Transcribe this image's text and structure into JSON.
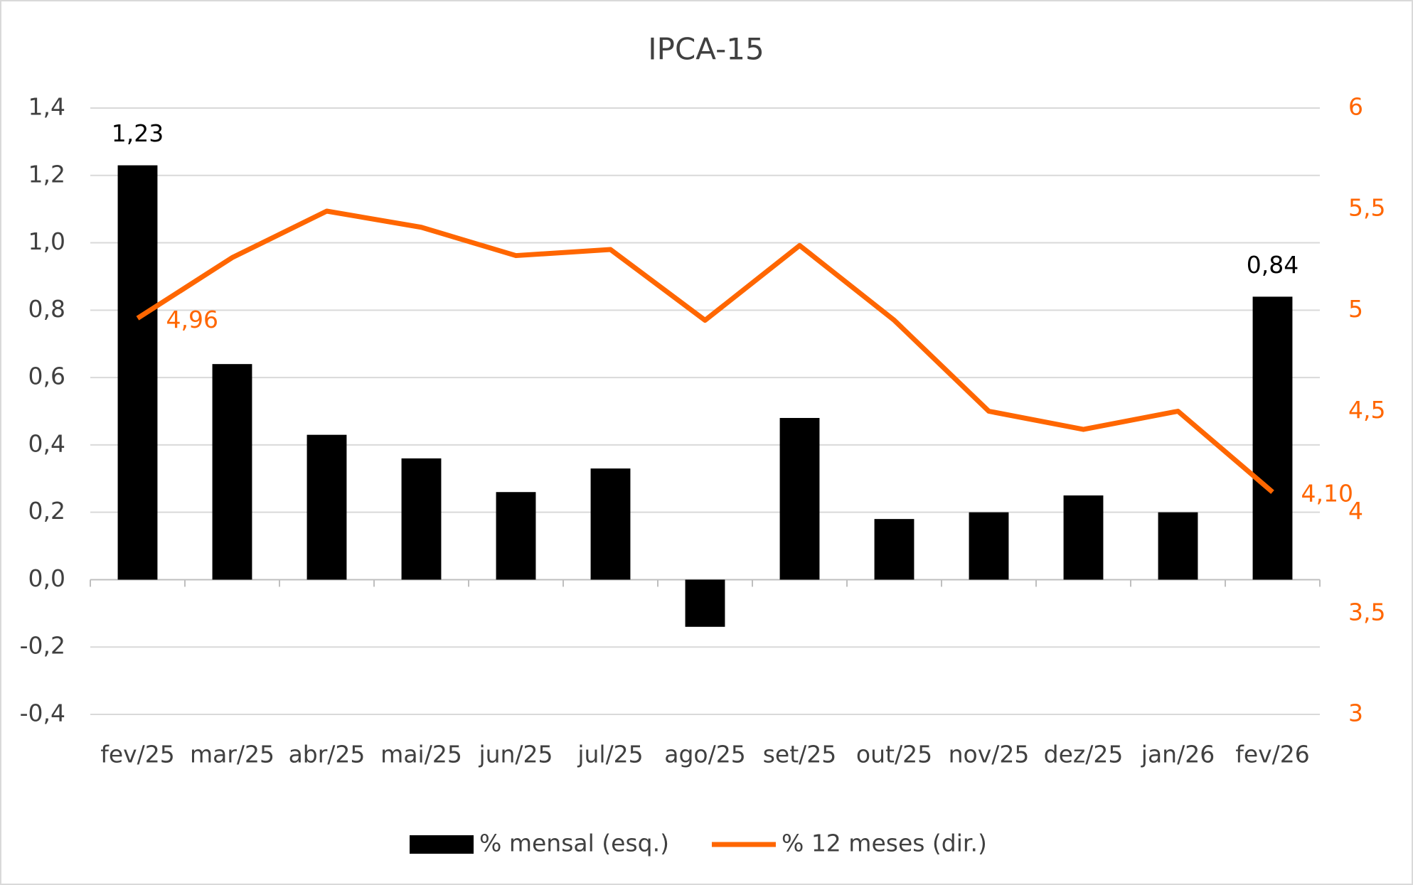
{
  "chart_data": {
    "type": "bar-line",
    "title": "IPCA-15",
    "categories": [
      "fev/25",
      "mar/25",
      "abr/25",
      "mai/25",
      "jun/25",
      "jul/25",
      "ago/25",
      "set/25",
      "out/25",
      "nov/25",
      "dez/25",
      "jan/26",
      "fev/26"
    ],
    "series": [
      {
        "name": "% mensal (esq.)",
        "type": "bar",
        "color": "#000000",
        "values": [
          1.23,
          0.64,
          0.43,
          0.36,
          0.26,
          0.33,
          -0.14,
          0.48,
          0.18,
          0.2,
          0.25,
          0.2,
          0.84
        ],
        "value_labels": [
          "1,23",
          null,
          null,
          null,
          null,
          null,
          null,
          null,
          null,
          null,
          null,
          null,
          "0,84"
        ]
      },
      {
        "name": "% 12 meses (dir.)",
        "type": "line",
        "axis": "y2",
        "color": "#ff6600",
        "values": [
          4.96,
          5.26,
          5.49,
          5.41,
          5.27,
          5.3,
          4.95,
          5.32,
          4.95,
          4.5,
          4.41,
          4.5,
          4.1
        ],
        "value_labels": [
          "4,96",
          null,
          null,
          null,
          null,
          null,
          null,
          null,
          null,
          null,
          null,
          null,
          "4,10"
        ]
      }
    ],
    "ylim": [
      -0.4,
      1.4
    ],
    "yticks": [
      {
        "value": -0.4,
        "label": "-0,4"
      },
      {
        "value": -0.2,
        "label": "-0,2"
      },
      {
        "value": 0,
        "label": "0,0"
      },
      {
        "value": 0.2,
        "label": "0,2"
      },
      {
        "value": 0.4,
        "label": "0,4"
      },
      {
        "value": 0.6,
        "label": "0,6"
      },
      {
        "value": 0.8,
        "label": "0,8"
      },
      {
        "value": 1.0,
        "label": "1,0"
      },
      {
        "value": 1.2,
        "label": "1,2"
      },
      {
        "value": 1.4,
        "label": "1,4"
      }
    ],
    "y2lim": [
      3,
      6
    ],
    "y2ticks": [
      3,
      {
        "value": 3.5,
        "label": "3,5"
      },
      4,
      {
        "value": 4.5,
        "label": "4,5"
      },
      5,
      {
        "value": 5.5,
        "label": "5,5"
      },
      6
    ],
    "grid": true,
    "legend": "bottom"
  }
}
